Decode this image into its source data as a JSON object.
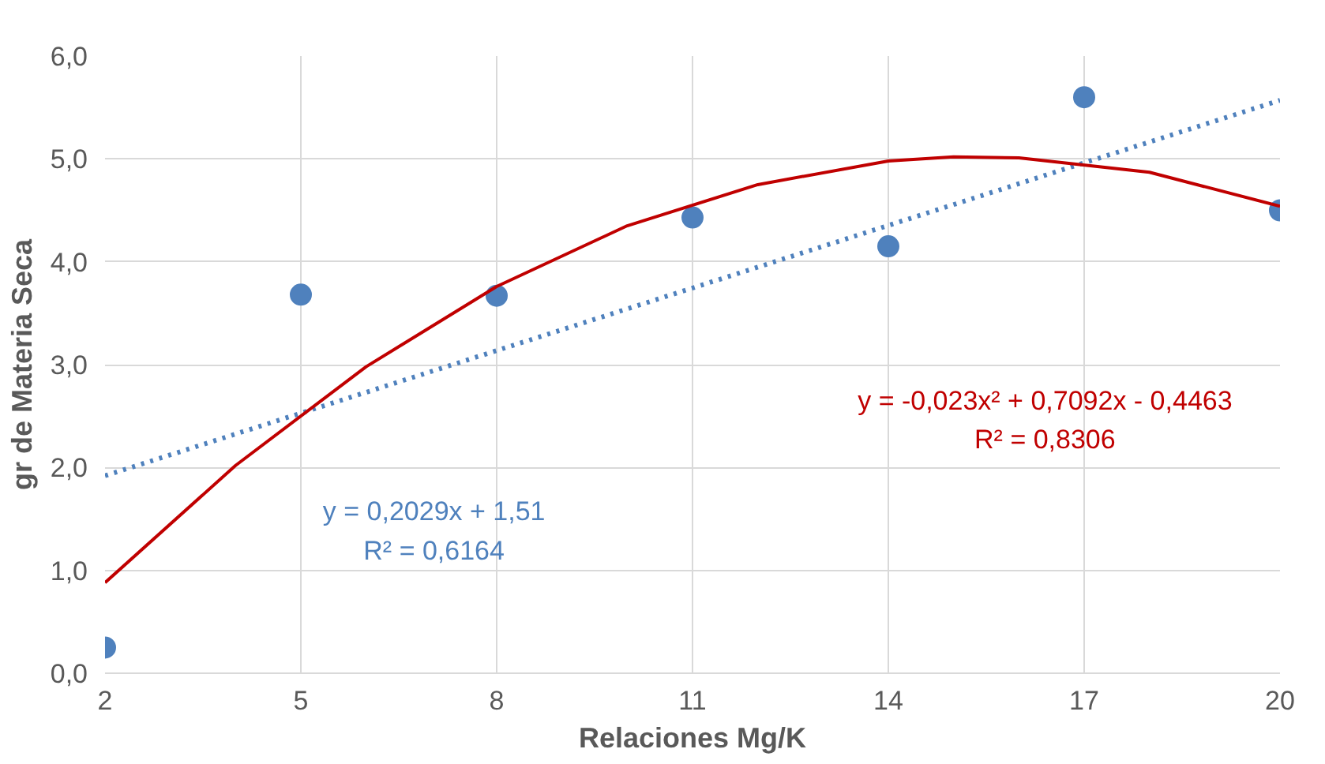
{
  "chart_data": {
    "type": "scatter",
    "xlabel": "Relaciones Mg/K",
    "ylabel": "gr de Materia Seca",
    "x": [
      2,
      5,
      8,
      11,
      14,
      17,
      20
    ],
    "series": [
      {
        "color": "#4f81bd",
        "marker": "circle",
        "values": [
          0.25,
          3.68,
          3.67,
          4.43,
          4.15,
          5.6,
          4.5
        ]
      },
      {
        "type": "line",
        "color": "#4f81bd",
        "line_style": "dotted",
        "x": [
          2,
          20
        ],
        "values": [
          1.92,
          5.57
        ]
      },
      {
        "type": "line",
        "color": "#c00000",
        "line_style": "solid",
        "x": [
          2,
          4,
          6,
          8,
          10,
          12,
          14,
          15,
          16,
          18,
          20
        ],
        "values": [
          0.88,
          2.02,
          2.98,
          3.76,
          4.35,
          4.75,
          4.98,
          5.02,
          5.01,
          4.87,
          4.54
        ]
      }
    ],
    "annotations": [
      "y = 0,2029x + 1,51\nR² = 0,6164",
      "y = -0,023x² + 0,7092x - 0,4463\nR² = 0,8306"
    ],
    "xlim": [
      2,
      20
    ],
    "xticks": [
      2,
      5,
      8,
      11,
      14,
      17,
      20
    ],
    "ylim": [
      0,
      6
    ],
    "yticks": [
      {
        "value": 0,
        "label": "0,0"
      },
      {
        "value": 1,
        "label": "1,0"
      },
      {
        "value": 2,
        "label": "2,0"
      },
      {
        "value": 3,
        "label": "3,0"
      },
      {
        "value": 4,
        "label": "4,0"
      },
      {
        "value": 5,
        "label": "5,0"
      },
      {
        "value": 6,
        "label": "6,0"
      }
    ],
    "grid": true
  }
}
